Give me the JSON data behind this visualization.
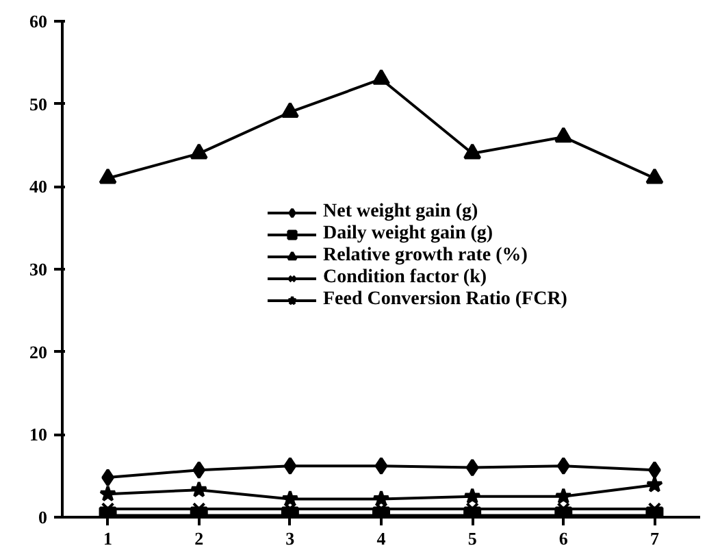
{
  "chart_data": {
    "type": "line",
    "categories": [
      "1",
      "2",
      "3",
      "4",
      "5",
      "6",
      "7"
    ],
    "series": [
      {
        "name": "Net weight gain (g)",
        "color": "#000000",
        "marker": "diamond",
        "values": [
          4.8,
          5.7,
          6.2,
          6.2,
          6.0,
          6.2,
          5.7
        ]
      },
      {
        "name": "Daily weight gain (g)",
        "color": "#000000",
        "marker": "square",
        "values": [
          0.2,
          0.2,
          0.2,
          0.2,
          0.2,
          0.2,
          0.2
        ]
      },
      {
        "name": "Relative growth rate (%)",
        "color": "#000000",
        "marker": "triangle",
        "values": [
          41,
          44,
          49,
          53,
          44,
          46,
          41
        ]
      },
      {
        "name": "Condition factor (k)",
        "color": "#000000",
        "marker": "cross",
        "values": [
          1.0,
          1.0,
          1.0,
          1.0,
          1.0,
          1.0,
          1.0
        ]
      },
      {
        "name": "Feed Conversion Ratio (FCR)",
        "color": "#000000",
        "marker": "star",
        "values": [
          2.8,
          3.3,
          2.2,
          2.2,
          2.5,
          2.5,
          3.9
        ]
      }
    ],
    "ylim": [
      0,
      60
    ],
    "yticks": [
      0,
      10,
      20,
      30,
      40,
      50,
      60
    ],
    "grid": false,
    "legend": "center",
    "line_style": "solid"
  }
}
